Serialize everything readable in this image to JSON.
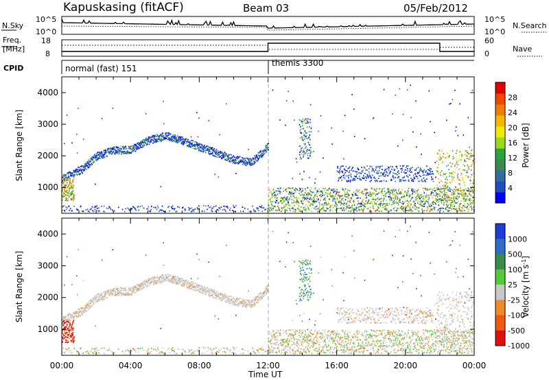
{
  "header": {
    "station": "Kapuskasing (fitACF)",
    "beam": "Beam 03",
    "date": "05/Feb/2012"
  },
  "noise_panel": {
    "left_label": "N.Sky",
    "right_label": "N.Search",
    "left_ticks": [
      "10^5",
      "10^0"
    ],
    "right_ticks": [
      "10^5",
      "10^0"
    ]
  },
  "freq_panel": {
    "left_label_line1": "Freq.",
    "left_label_line2": "[MHz]",
    "right_label": "Nave",
    "left_ticks": [
      "18",
      "8"
    ],
    "right_ticks": [
      "60",
      "0"
    ]
  },
  "cpid_panel": {
    "label": "CPID",
    "segments": [
      {
        "name": "normal (fast) 151",
        "start_hour": 0
      },
      {
        "name": "themis 3300",
        "start_hour": 12
      }
    ]
  },
  "time_axis": {
    "label": "Time UT",
    "tick_labels": [
      "00:00",
      "04:00",
      "08:00",
      "12:00",
      "16:00",
      "20:00",
      "00:00"
    ],
    "tick_hours": [
      0,
      4,
      8,
      12,
      16,
      20,
      24
    ]
  },
  "chart_data": [
    {
      "type": "heatmap",
      "name": "power",
      "ylabel": "Slant Range [km]",
      "xlim": [
        0,
        24
      ],
      "ylim": [
        180,
        4500
      ],
      "y_ticks": [
        1000,
        2000,
        3000,
        4000
      ],
      "colorbar": {
        "label": "Power [dB]",
        "range": [
          0,
          32
        ],
        "tick_values": [
          4,
          8,
          12,
          16,
          20,
          24,
          28
        ],
        "tick_labels": [
          "4",
          "8",
          "12",
          "16",
          "20",
          "24",
          "28"
        ],
        "colors": [
          "#0000ff",
          "#1f4fbf",
          "#2e6ea0",
          "#3c8a4f",
          "#2aa43a",
          "#9ad818",
          "#f0ea00",
          "#f5b800",
          "#f27e00",
          "#f04800",
          "#e00000"
        ]
      },
      "features": [
        {
          "desc": "band",
          "hours": [
            0,
            1.2,
            2,
            3,
            4,
            5,
            6,
            7,
            8,
            9,
            10,
            11,
            12
          ],
          "km": [
            1300,
            1600,
            2000,
            2200,
            2200,
            2500,
            2650,
            2500,
            2300,
            2100,
            1900,
            1800,
            2300
          ]
        },
        {
          "desc": "near",
          "hours": [
            12,
            24
          ],
          "km": [
            300,
            1000
          ]
        }
      ]
    },
    {
      "type": "heatmap",
      "name": "velocity",
      "ylabel": "Slant Range [km]",
      "xlim": [
        0,
        24
      ],
      "ylim": [
        180,
        4500
      ],
      "y_ticks": [
        1000,
        2000,
        3000,
        4000
      ],
      "colorbar": {
        "label": "Velocity [m s",
        "label_sup": "-1",
        "label_end": "]",
        "tick_labels": [
          "1000",
          "500",
          "100",
          "25",
          "-25",
          "-100",
          "-500",
          "-1000"
        ],
        "colors": [
          "#1e3cd6",
          "#2f6cc8",
          "#3a8a4a",
          "#58c83a",
          "#c8c8c8",
          "#f08c28",
          "#f05a10",
          "#e01010"
        ]
      }
    }
  ]
}
